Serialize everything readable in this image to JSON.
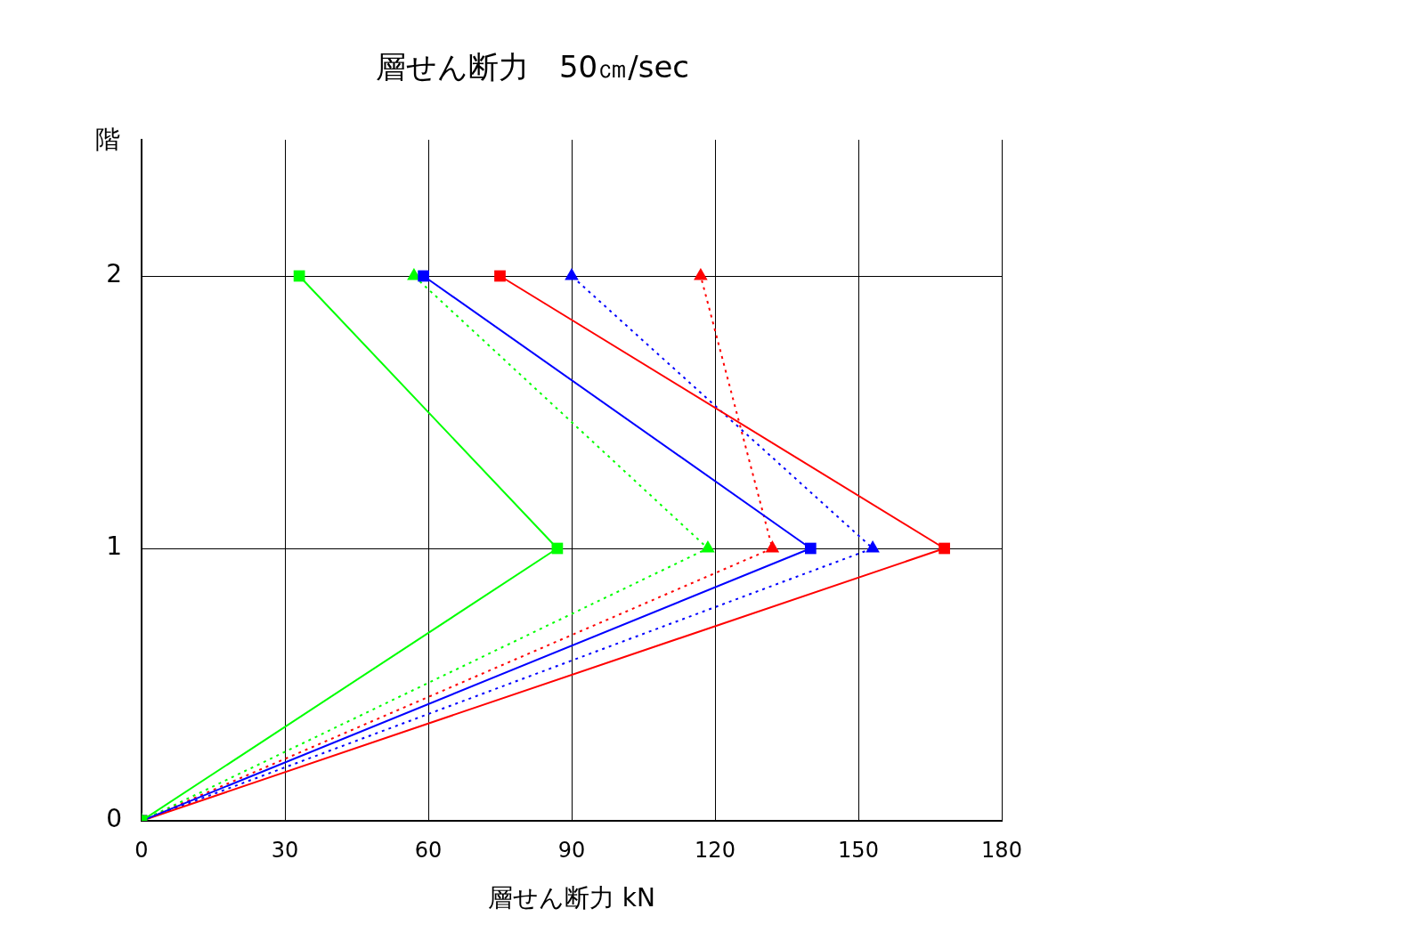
{
  "chart_data": {
    "type": "line",
    "title": "層せん断力　50㎝/sec",
    "xlabel": "層せん断力 kN",
    "ylabel": "階",
    "xlim": [
      0,
      180
    ],
    "xticks": [
      0,
      30,
      60,
      90,
      120,
      150,
      180
    ],
    "ylim": [
      0,
      2.5
    ],
    "yticks": [
      0,
      1,
      2
    ],
    "grid": true,
    "legend": false,
    "series": [
      {
        "color": "#00ff00",
        "marker": "square",
        "line_style": "solid",
        "x": [
          0,
          87,
          33
        ],
        "values": [
          0,
          1,
          2
        ]
      },
      {
        "color": "#0000ff",
        "marker": "square",
        "line_style": "solid",
        "x": [
          0,
          140,
          59
        ],
        "values": [
          0,
          1,
          2
        ]
      },
      {
        "color": "#ff0000",
        "marker": "square",
        "line_style": "solid",
        "x": [
          0,
          168,
          75
        ],
        "values": [
          0,
          1,
          2
        ]
      },
      {
        "color": "#00ff00",
        "marker": "triangle",
        "line_style": "dotted",
        "x": [
          0,
          118.5,
          57
        ],
        "values": [
          0,
          1,
          2
        ]
      },
      {
        "color": "#0000ff",
        "marker": "triangle",
        "line_style": "dotted",
        "x": [
          0,
          153,
          90
        ],
        "values": [
          0,
          1,
          2
        ]
      },
      {
        "color": "#ff0000",
        "marker": "triangle",
        "line_style": "dotted",
        "x": [
          0,
          132,
          117
        ],
        "values": [
          0,
          1,
          2
        ]
      }
    ]
  }
}
